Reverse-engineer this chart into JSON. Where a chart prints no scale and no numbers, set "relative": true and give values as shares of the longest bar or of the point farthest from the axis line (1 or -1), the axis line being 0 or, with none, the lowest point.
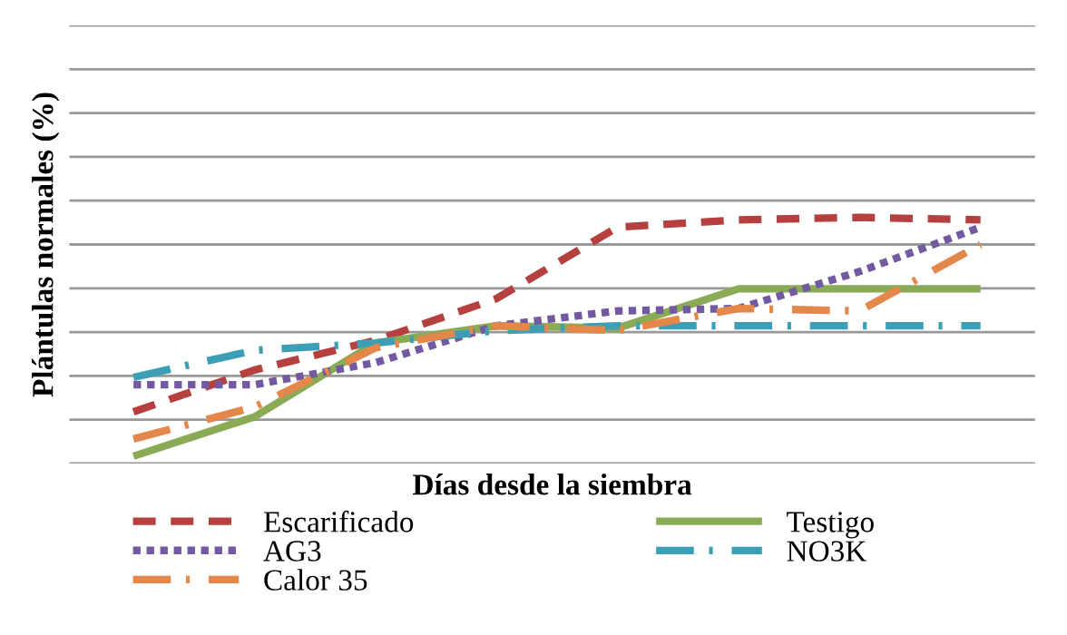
{
  "chart_data": {
    "type": "line",
    "relative": true,
    "xlabel": "Días desde la siembra",
    "ylabel": "Plántulas normales (%)",
    "categories": [
      null,
      null,
      null,
      null,
      null,
      null,
      null,
      null
    ],
    "series": [
      {
        "name": "Escarificado",
        "color": "#b5403f",
        "line_style": "dashed",
        "values": [
          0.21,
          0.38,
          0.5,
          0.67,
          0.96,
          0.99,
          1,
          0.99
        ]
      },
      {
        "name": "Testigo",
        "color": "#8aab55",
        "line_style": "solid",
        "values": [
          0.03,
          0.19,
          0.49,
          0.56,
          0.55,
          0.71,
          0.71,
          0.71
        ]
      },
      {
        "name": "AG3",
        "color": "#7359a0",
        "line_style": "dotted",
        "values": [
          0.32,
          0.32,
          0.41,
          0.56,
          0.62,
          0.63,
          0.78,
          0.96
        ]
      },
      {
        "name": "NO3K",
        "color": "#3d9fb5",
        "line_style": "dashed",
        "values": [
          0.35,
          0.46,
          0.49,
          0.54,
          0.56,
          0.56,
          0.56,
          0.56
        ]
      },
      {
        "name": "Calor 35",
        "color": "#e3874a",
        "line_style": "dashed",
        "values": [
          0.1,
          0.23,
          0.47,
          0.56,
          0.54,
          0.63,
          0.62,
          0.89
        ]
      }
    ],
    "grid": "y",
    "legend": "bottom",
    "marker": "none",
    "tick_labels": false
  }
}
